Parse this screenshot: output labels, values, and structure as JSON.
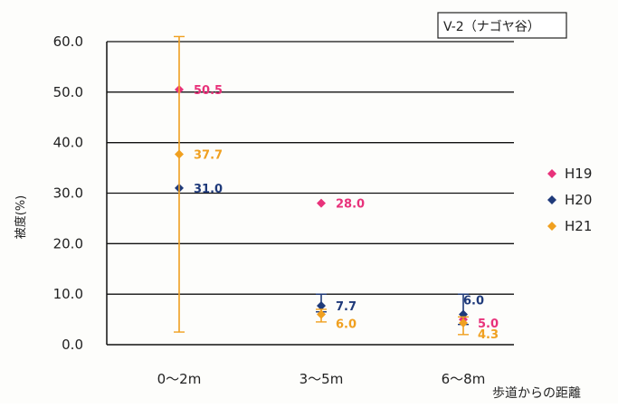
{
  "chart_data": {
    "type": "scatter",
    "title": "V-2（ナゴヤ谷）",
    "xlabel": "歩道からの距離",
    "ylabel": "被度(%)",
    "categories": [
      "0～2m",
      "3～5m",
      "6～8m"
    ],
    "ylim": [
      0,
      60
    ],
    "yticks": [
      "0.0",
      "10.0",
      "20.0",
      "30.0",
      "40.0",
      "50.0",
      "60.0"
    ],
    "grid": true,
    "legend_position": "right",
    "series": [
      {
        "name": "H19",
        "color": "#e8327a",
        "values": [
          50.5,
          28.0,
          5.0
        ],
        "labels": [
          "50.5",
          "28.0",
          "5.0"
        ],
        "error_low": [
          null,
          null,
          null
        ],
        "error_high": [
          null,
          null,
          null
        ]
      },
      {
        "name": "H20",
        "color": "#1f3a7a",
        "values": [
          31.0,
          7.7,
          6.0
        ],
        "labels": [
          "31.0",
          "7.7",
          "6.0"
        ],
        "error_low": [
          null,
          6.5,
          4.0
        ],
        "error_high": [
          null,
          10.0,
          10.0
        ]
      },
      {
        "name": "H21",
        "color": "#f0a020",
        "values": [
          37.7,
          6.0,
          4.3
        ],
        "labels": [
          "37.7",
          "6.0",
          "4.3"
        ],
        "error_low": [
          2.5,
          4.5,
          2.0
        ],
        "error_high": [
          61.0,
          7.0,
          5.5
        ]
      }
    ]
  }
}
